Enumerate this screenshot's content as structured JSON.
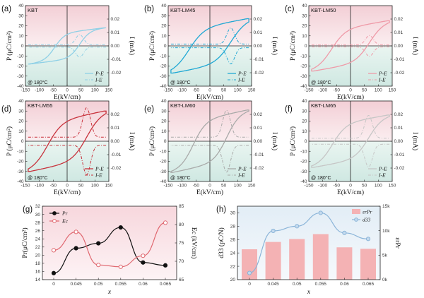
{
  "chart_data": [
    {
      "type": "line",
      "panel_label": "(a)",
      "title": "KBT",
      "note": "@ 180°C",
      "color": "#8fd0e6",
      "xlabel": "E(kV/cm)",
      "ylabel": "P (μC/cm²)",
      "y2label": "I (mA)",
      "xlim": [
        -150,
        150
      ],
      "ylim": [
        -40,
        40
      ],
      "y2lim": [
        -0.03,
        0.03
      ],
      "x_ticks": [
        "-150",
        "-100",
        "-50",
        "0",
        "50",
        "100",
        "150"
      ],
      "y_ticks": [
        "-40",
        "-30",
        "-20",
        "-10",
        "0",
        "10",
        "20",
        "30",
        "40"
      ],
      "y2_ticks": [
        "-0.02",
        "-0.01",
        "0.00",
        "0.01",
        "0.02"
      ],
      "legend": [
        "P-E",
        "I-E"
      ],
      "pmax": 18,
      "pr": 8,
      "ec": 45,
      "imax": 0.006,
      "ipk": 0.0075
    },
    {
      "type": "line",
      "panel_label": "(b)",
      "title": "KBT-LM45",
      "note": "@ 180°C",
      "color": "#1fa8d4",
      "xlabel": "E(kV/cm)",
      "ylabel": "P (μC/cm²)",
      "y2label": "I (mA)",
      "xlim": [
        -150,
        150
      ],
      "ylim": [
        -40,
        40
      ],
      "y2lim": [
        -0.03,
        0.03
      ],
      "x_ticks": [
        "-150",
        "-100",
        "-50",
        "0",
        "50",
        "100",
        "150"
      ],
      "y_ticks": [
        "-40",
        "-30",
        "-20",
        "-10",
        "0",
        "10",
        "20",
        "30",
        "40"
      ],
      "y2_ticks": [
        "-0.02",
        "-0.01",
        "0.00",
        "0.01",
        "0.02"
      ],
      "legend": [
        "P-E",
        "I-E"
      ],
      "pmax": 27,
      "pr": 21,
      "ec": 75,
      "imax": 0.009,
      "ipk": 0.012
    },
    {
      "type": "line",
      "panel_label": "(c)",
      "title": "KBT-LM50",
      "note": "@ 180°C",
      "color": "#ef9aa8",
      "xlabel": "E(kV/cm)",
      "ylabel": "P (μC/cm²)",
      "y2label": "I (mA)",
      "xlim": [
        -150,
        150
      ],
      "ylim": [
        -40,
        40
      ],
      "y2lim": [
        -0.03,
        0.03
      ],
      "x_ticks": [
        "-150",
        "-100",
        "-50",
        "0",
        "50",
        "100",
        "150"
      ],
      "y_ticks": [
        "-40",
        "-30",
        "-20",
        "-10",
        "0",
        "10",
        "20",
        "30",
        "40"
      ],
      "y2_ticks": [
        "-0.02",
        "-0.01",
        "0.00",
        "0.01",
        "0.02"
      ],
      "legend": [
        "P-E",
        "I-E"
      ],
      "pmax": 25,
      "pr": 22,
      "ec": 68,
      "imax": 0.005,
      "ipk": 0.007
    },
    {
      "type": "line",
      "panel_label": "(d)",
      "title": "KBT-LM55",
      "note": "@ 180°C",
      "color": "#c8323c",
      "xlabel": "E(kV/cm)",
      "ylabel": "P (μC/cm²)",
      "y2label": "I (mA)",
      "xlim": [
        -150,
        150
      ],
      "ylim": [
        -40,
        40
      ],
      "y2lim": [
        -0.03,
        0.03
      ],
      "x_ticks": [
        "-150",
        "-100",
        "-50",
        "0",
        "50",
        "100",
        "150"
      ],
      "y_ticks": [
        "-40",
        "-30",
        "-20",
        "-10",
        "0",
        "10",
        "20",
        "30",
        "40"
      ],
      "y2_ticks": [
        "-0.02",
        "-0.01",
        "0.00",
        "0.01",
        "0.02"
      ],
      "legend": [
        "P-E",
        "I-E"
      ],
      "pmax": 30,
      "pr": 27,
      "ec": 70,
      "imax": 0.02,
      "ipk": 0.022
    },
    {
      "type": "line",
      "panel_label": "(e)",
      "title": "KBT-LM60",
      "note": "@ 180°C",
      "color": "#a9aaa9",
      "xlabel": "E(kV/cm)",
      "ylabel": "P (μC/cm²)",
      "y2label": "I (mA)",
      "xlim": [
        -150,
        150
      ],
      "ylim": [
        -40,
        40
      ],
      "y2lim": [
        -0.03,
        0.03
      ],
      "x_ticks": [
        "-150",
        "-100",
        "-50",
        "0",
        "50",
        "100",
        "150"
      ],
      "y_ticks": [
        "-40",
        "-30",
        "-20",
        "-10",
        "0",
        "10",
        "20",
        "30",
        "40"
      ],
      "y2_ticks": [
        "-0.02",
        "-0.01",
        "0.00",
        "0.01",
        "0.02"
      ],
      "legend": [
        "P-E",
        "I-E"
      ],
      "pmax": 31,
      "pr": 18,
      "ec": 60,
      "imax": 0.02,
      "ipk": 0.02
    },
    {
      "type": "line",
      "panel_label": "(f)",
      "title": "KBT-LM65",
      "note": "@ 180°C",
      "color": "#c6c6c6",
      "xlabel": "E(kV/cm)",
      "ylabel": "P (μC/cm²)",
      "y2label": "I (mA)",
      "xlim": [
        -150,
        150
      ],
      "ylim": [
        -40,
        40
      ],
      "y2lim": [
        -0.03,
        0.03
      ],
      "x_ticks": [
        "-150",
        "-100",
        "-50",
        "0",
        "50",
        "100",
        "150"
      ],
      "y_ticks": [
        "-40",
        "-30",
        "-20",
        "-10",
        "0",
        "10",
        "20",
        "30",
        "40"
      ],
      "y2_ticks": [
        "-0.02",
        "-0.01",
        "0.00",
        "0.01",
        "0.02"
      ],
      "legend": [
        "P-E",
        "I-E"
      ],
      "pmax": 26,
      "pr": 17,
      "ec": 65,
      "imax": 0.015,
      "ipk": 0.017
    },
    {
      "type": "line",
      "panel_label": "(g)",
      "xlabel": "x",
      "ylabel": "Pr(μC/cm²)",
      "y2label": "Ec (kV/cm)",
      "categories": [
        "0",
        "0.045",
        "0.05",
        "0.055",
        "0.06",
        "0.065"
      ],
      "ylim": [
        14,
        32
      ],
      "y2lim": [
        65,
        85
      ],
      "y_ticks": [
        "14",
        "16",
        "18",
        "20",
        "22",
        "24",
        "26",
        "28",
        "30",
        "32"
      ],
      "y2_ticks": [
        "65",
        "70",
        "75",
        "80",
        "85"
      ],
      "series": [
        {
          "name": "Pr",
          "color": "#111111",
          "axis": "left",
          "values": [
            15.6,
            21.7,
            22.9,
            26.8,
            18.2,
            17.5
          ]
        },
        {
          "name": "Ec",
          "color": "#e06870",
          "axis": "right",
          "values": [
            73,
            78,
            69,
            68.5,
            71.5,
            80.5
          ]
        }
      ]
    },
    {
      "type": "bar",
      "panel_label": "(h)",
      "xlabel": "x",
      "ylabel": "d33 (pC/N)",
      "y2label": "εrPr",
      "categories": [
        "0",
        "0.045",
        "0.05",
        "0.055",
        "0.06",
        "0.065"
      ],
      "ylim": [
        20,
        31
      ],
      "y2lim": [
        0,
        15000
      ],
      "y_ticks": [
        "20",
        "22",
        "24",
        "26",
        "28",
        "30"
      ],
      "y2_ticks": [
        "0k",
        "5k",
        "10k",
        "15k"
      ],
      "series": [
        {
          "name": "εrPr",
          "color": "#f4b2b4",
          "axis": "right",
          "kind": "bar",
          "values": [
            6200,
            7700,
            8300,
            9300,
            6600,
            6300
          ]
        },
        {
          "name": "d33",
          "color": "#8ab4d8",
          "axis": "left",
          "kind": "line",
          "values": [
            21,
            27.3,
            28,
            30,
            27,
            26.1
          ]
        }
      ]
    }
  ]
}
